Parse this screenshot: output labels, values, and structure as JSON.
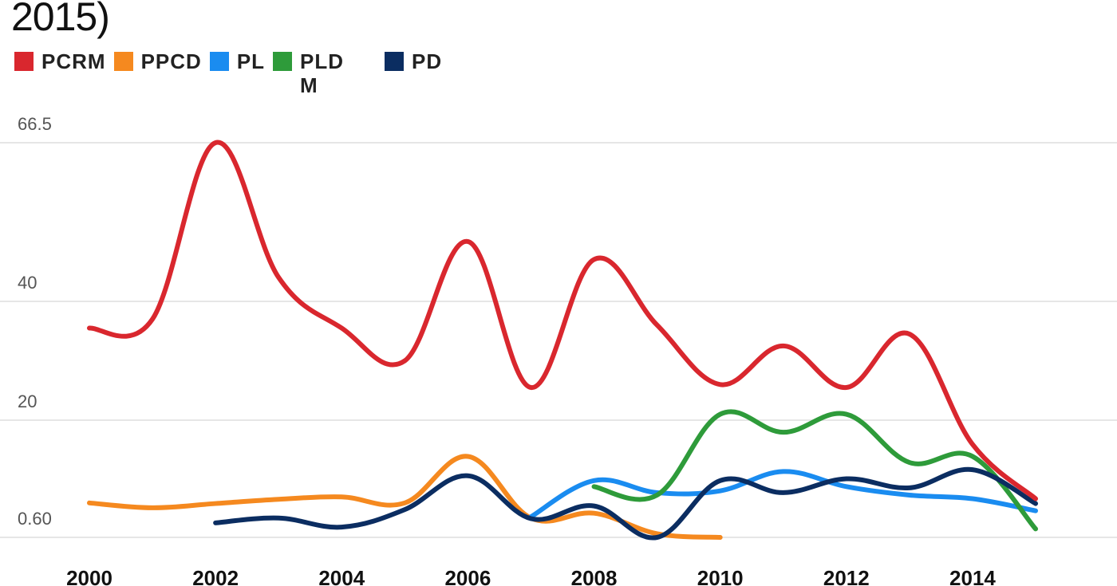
{
  "chart_data": {
    "type": "line",
    "title": "2015)",
    "legend_position": "top-left",
    "grid": true,
    "x": [
      2000,
      2001,
      2002,
      2003,
      2004,
      2005,
      2006,
      2007,
      2008,
      2009,
      2010,
      2011,
      2012,
      2013,
      2014,
      2015
    ],
    "xlim": [
      2000,
      2015
    ],
    "x_tick_labels": [
      "2000",
      "2002",
      "2004",
      "2006",
      "2008",
      "2010",
      "2012",
      "2014"
    ],
    "x_tick_values": [
      2000,
      2002,
      2004,
      2006,
      2008,
      2010,
      2012,
      2014
    ],
    "y_tick_labels": [
      "0.60",
      "20",
      "40",
      "66.5"
    ],
    "y_tick_values": [
      0.6,
      20,
      40,
      66.5
    ],
    "ylim": [
      0.6,
      66.5
    ],
    "series": [
      {
        "name": "PCRM",
        "color": "#d9272e",
        "points": [
          [
            2000,
            35.5
          ],
          [
            2001,
            37
          ],
          [
            2002,
            66.5
          ],
          [
            2003,
            44
          ],
          [
            2004,
            35.5
          ],
          [
            2005,
            30
          ],
          [
            2006,
            50
          ],
          [
            2007,
            25.5
          ],
          [
            2008,
            47
          ],
          [
            2009,
            36
          ],
          [
            2010,
            26
          ],
          [
            2011,
            32.5
          ],
          [
            2012,
            25.5
          ],
          [
            2013,
            34.5
          ],
          [
            2014,
            16
          ],
          [
            2015,
            7
          ]
        ]
      },
      {
        "name": "PPCD",
        "color": "#f5891f",
        "points": [
          [
            2000,
            6.3
          ],
          [
            2001,
            5.5
          ],
          [
            2002,
            6.2
          ],
          [
            2003,
            6.9
          ],
          [
            2004,
            7.3
          ],
          [
            2005,
            6.3
          ],
          [
            2006,
            14
          ],
          [
            2007,
            3.8
          ],
          [
            2008,
            4.6
          ],
          [
            2009,
            1.2
          ],
          [
            2010,
            0.6
          ]
        ]
      },
      {
        "name": "PL",
        "color": "#1a8cf0",
        "points": [
          [
            2007,
            4
          ],
          [
            2008,
            10
          ],
          [
            2009,
            8
          ],
          [
            2010,
            8.3
          ],
          [
            2011,
            11.5
          ],
          [
            2012,
            9
          ],
          [
            2013,
            7.6
          ],
          [
            2014,
            7
          ],
          [
            2015,
            5
          ]
        ]
      },
      {
        "name": "PLD M",
        "color": "#2e9b3a",
        "points": [
          [
            2008,
            9
          ],
          [
            2009,
            7.6
          ],
          [
            2010,
            21
          ],
          [
            2011,
            18
          ],
          [
            2012,
            21
          ],
          [
            2013,
            13
          ],
          [
            2014,
            14
          ],
          [
            2015,
            2
          ]
        ]
      },
      {
        "name": "PD",
        "color": "#0b2d61",
        "points": [
          [
            2002,
            3
          ],
          [
            2003,
            3.8
          ],
          [
            2004,
            2.3
          ],
          [
            2005,
            5.2
          ],
          [
            2006,
            10.8
          ],
          [
            2007,
            3.7
          ],
          [
            2008,
            5.8
          ],
          [
            2009,
            0.6
          ],
          [
            2010,
            10
          ],
          [
            2011,
            8
          ],
          [
            2012,
            10.3
          ],
          [
            2013,
            8.8
          ],
          [
            2014,
            11.8
          ],
          [
            2015,
            6.2
          ]
        ]
      }
    ]
  }
}
